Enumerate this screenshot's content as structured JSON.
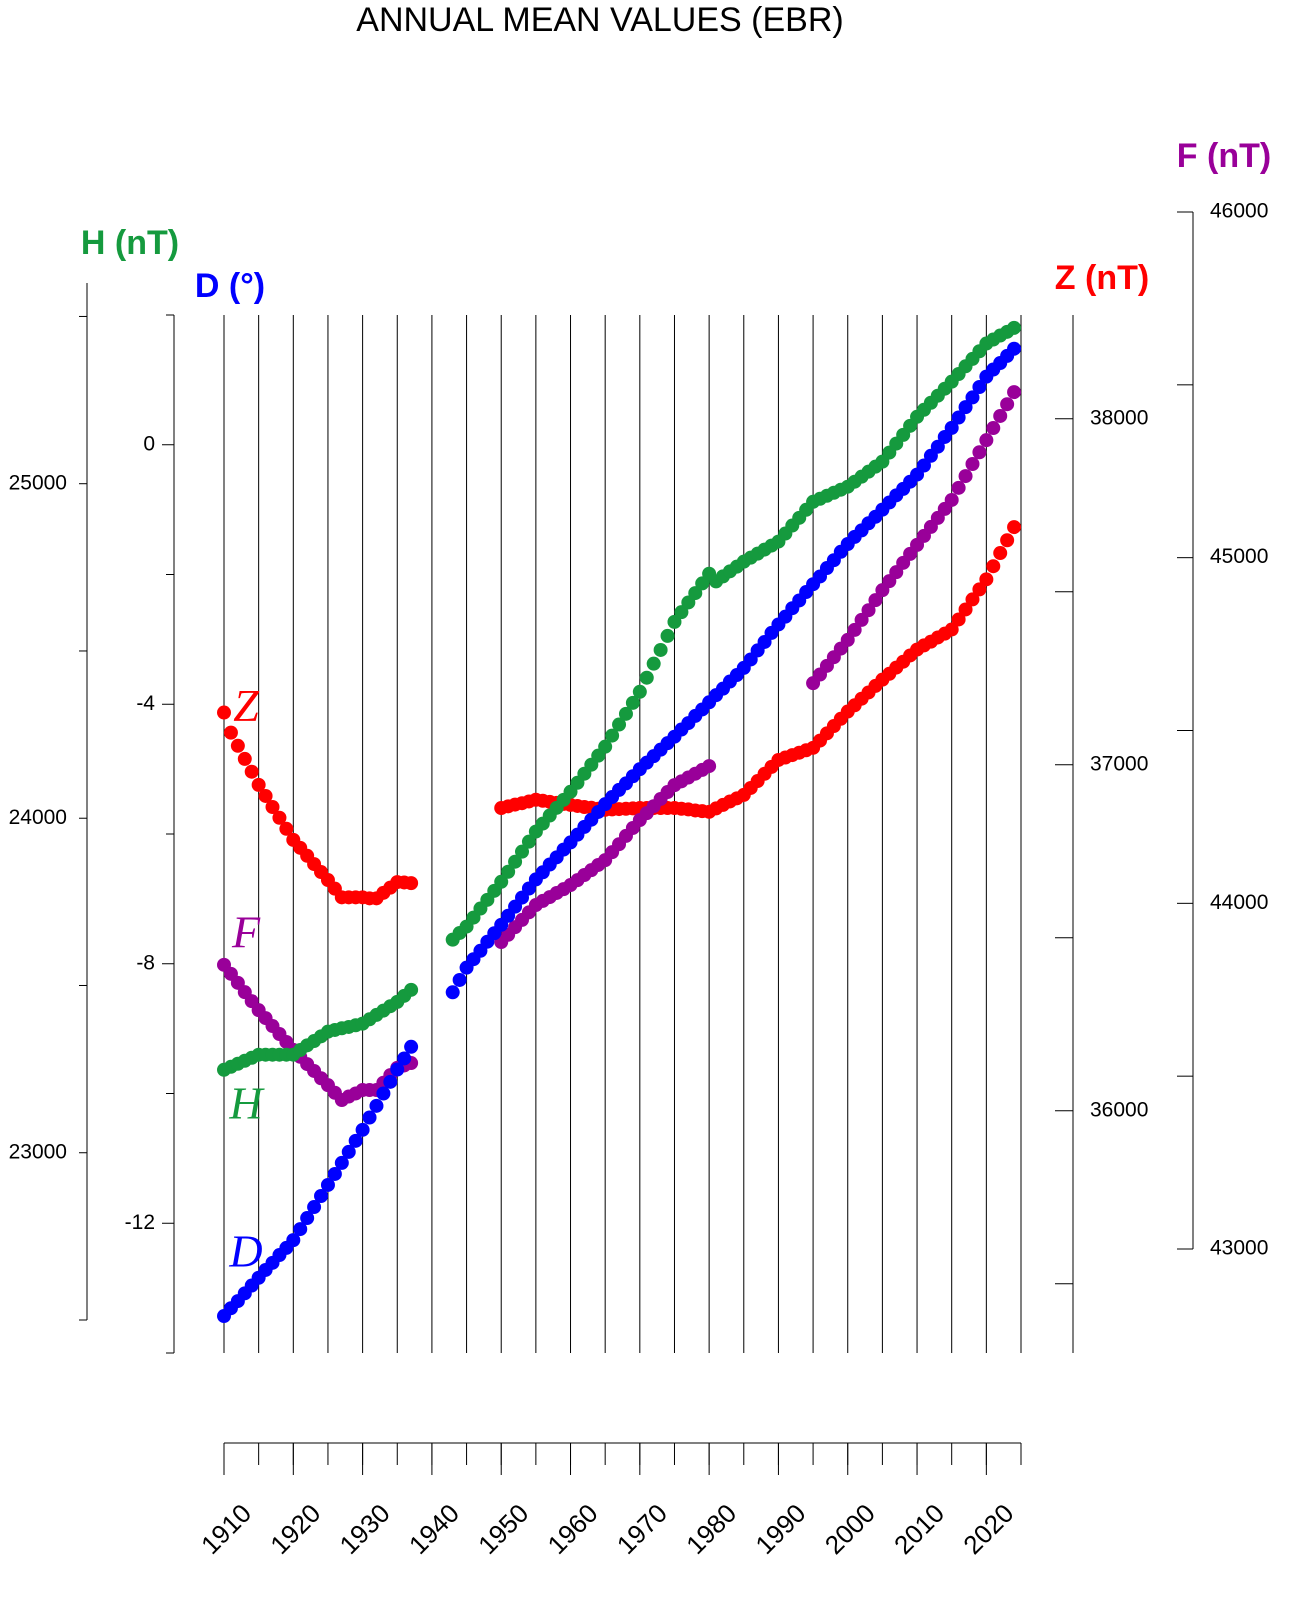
{
  "chart_data": {
    "type": "scatter",
    "title": "ANNUAL MEAN VALUES (EBR)",
    "x": [
      1910,
      1911,
      1912,
      1913,
      1914,
      1915,
      1916,
      1917,
      1918,
      1919,
      1920,
      1921,
      1922,
      1923,
      1924,
      1925,
      1926,
      1927,
      1928,
      1929,
      1930,
      1931,
      1932,
      1933,
      1934,
      1935,
      1936,
      1937,
      1938,
      1939,
      1940,
      1941,
      1942,
      1943,
      1944,
      1945,
      1946,
      1947,
      1948,
      1949,
      1950,
      1951,
      1952,
      1953,
      1954,
      1955,
      1956,
      1957,
      1958,
      1959,
      1960,
      1961,
      1962,
      1963,
      1964,
      1965,
      1966,
      1967,
      1968,
      1969,
      1970,
      1971,
      1972,
      1973,
      1974,
      1975,
      1976,
      1977,
      1978,
      1979,
      1980,
      1981,
      1982,
      1983,
      1984,
      1985,
      1986,
      1987,
      1988,
      1989,
      1990,
      1991,
      1992,
      1993,
      1994,
      1995,
      1996,
      1997,
      1998,
      1999,
      2000,
      2001,
      2002,
      2003,
      2004,
      2005,
      2006,
      2007,
      2008,
      2009,
      2010,
      2011,
      2012,
      2013,
      2014,
      2015,
      2016,
      2017,
      2018,
      2019,
      2020,
      2021,
      2022,
      2023,
      2024
    ],
    "xlim": [
      1910,
      2025
    ],
    "xticks": [
      1910,
      1920,
      1930,
      1940,
      1950,
      1960,
      1970,
      1980,
      1990,
      2000,
      2010,
      2020
    ],
    "xminorticks": [
      1910,
      1915,
      1920,
      1925,
      1930,
      1935,
      1940,
      1945,
      1950,
      1955,
      1960,
      1965,
      1970,
      1975,
      1980,
      1985,
      1990,
      1995,
      2000,
      2005,
      2010,
      2015,
      2020,
      2025
    ],
    "grid": true,
    "y_axes": [
      {
        "label": "D (°)",
        "color": "#0000ff",
        "lim": [
          -14,
          2
        ],
        "ticks": [
          -12,
          -8,
          -4,
          0
        ],
        "minor_ticks": [
          -14,
          -10,
          -6,
          -2,
          2
        ]
      },
      {
        "label": "H (nT)",
        "color": "#159a3e",
        "lim": [
          22500,
          25600
        ],
        "ticks": [
          23000,
          24000,
          25000
        ],
        "minor_ticks": [
          22500,
          23500,
          24500,
          25500
        ]
      },
      {
        "label": "Z (nT)",
        "color": "#ff0000",
        "lim": [
          35300,
          38300
        ],
        "ticks": [
          36000,
          37000,
          38000
        ],
        "minor_ticks": [
          35500,
          36500,
          37500
        ]
      },
      {
        "label": "F (nT)",
        "color": "#990099",
        "lim": [
          43000,
          46000
        ],
        "ticks": [
          43000,
          44000,
          45000,
          46000
        ],
        "minor_ticks": [
          43500,
          44500,
          45500
        ]
      }
    ],
    "series": [
      {
        "name": "Z",
        "color": "#ff0000",
        "axis": 2,
        "values": [
          37151,
          37093,
          37055,
          37017,
          36980,
          36942,
          36910,
          36878,
          36847,
          36815,
          36783,
          36760,
          36737,
          36713,
          36690,
          36667,
          36642,
          36617,
          36617,
          36617,
          36617,
          36614,
          36614,
          36630,
          36645,
          36661,
          36660,
          36658,
          null,
          null,
          null,
          null,
          null,
          null,
          null,
          null,
          null,
          null,
          null,
          null,
          36875,
          36880,
          36885,
          36889,
          36894,
          36899,
          36896,
          36893,
          36890,
          36887,
          36884,
          36881,
          36878,
          36876,
          36873,
          36870,
          36871,
          36872,
          36873,
          36874,
          36875,
          36875,
          36875,
          36875,
          36875,
          36875,
          36873,
          36871,
          36868,
          36866,
          36864,
          36874,
          36884,
          36894,
          36903,
          36913,
          36933,
          36953,
          36974,
          36994,
          37014,
          37021,
          37028,
          37035,
          37042,
          37049,
          37070,
          37091,
          37112,
          37133,
          37154,
          37172,
          37191,
          37209,
          37228,
          37246,
          37263,
          37281,
          37298,
          37316,
          37333,
          37345,
          37356,
          37368,
          37379,
          37391,
          37420,
          37449,
          37478,
          37507,
          37536,
          37574,
          37612,
          37649,
          37687
        ]
      },
      {
        "name": "F",
        "color": "#990099",
        "axis": 3,
        "values": [
          43822,
          43796,
          43770,
          43743,
          43717,
          43691,
          43668,
          43645,
          43622,
          43599,
          43576,
          43556,
          43535,
          43515,
          43494,
          43474,
          43452,
          43431,
          43441,
          43450,
          43460,
          43460,
          43460,
          43481,
          43503,
          43524,
          43531,
          43538,
          null,
          null,
          null,
          null,
          null,
          null,
          null,
          null,
          null,
          null,
          null,
          null,
          43888,
          43909,
          43931,
          43952,
          43974,
          43995,
          44007,
          44018,
          44030,
          44041,
          44053,
          44067,
          44082,
          44096,
          44111,
          44125,
          44148,
          44171,
          44195,
          44218,
          44241,
          44261,
          44281,
          44302,
          44322,
          44342,
          44353,
          44364,
          44375,
          44386,
          44397,
          null,
          null,
          null,
          null,
          null,
          null,
          null,
          null,
          null,
          null,
          null,
          null,
          null,
          null,
          44637,
          44662,
          44687,
          44712,
          44737,
          44762,
          44791,
          44820,
          44848,
          44877,
          44906,
          44932,
          44958,
          44985,
          45011,
          45037,
          45063,
          45089,
          45115,
          45141,
          45167,
          45202,
          45236,
          45271,
          45305,
          45340,
          45375,
          45410,
          45444,
          45479
        ]
      },
      {
        "name": "H",
        "color": "#159a3e",
        "axis": 1,
        "values": [
          23248,
          23257,
          23266,
          23275,
          23284,
          23293,
          23293,
          23293,
          23293,
          23293,
          23293,
          23307,
          23321,
          23334,
          23348,
          23362,
          23367,
          23372,
          23376,
          23381,
          23386,
          23399,
          23412,
          23425,
          23438,
          23451,
          23469,
          23487,
          null,
          null,
          null,
          null,
          null,
          23637,
          23657,
          23676,
          23703,
          23730,
          23756,
          23783,
          23810,
          23840,
          23870,
          23900,
          23930,
          23960,
          23984,
          24008,
          24031,
          24055,
          24079,
          24106,
          24133,
          24160,
          24187,
          24214,
          24247,
          24280,
          24312,
          24345,
          24378,
          24420,
          24462,
          24503,
          24545,
          24587,
          24616,
          24645,
          24673,
          24702,
          24731,
          24708,
          24723,
          24738,
          24752,
          24767,
          24779,
          24791,
          24803,
          24815,
          24827,
          24851,
          24875,
          24898,
          24922,
          24946,
          24955,
          24964,
          24973,
          24982,
          24991,
          25006,
          25021,
          25036,
          25051,
          25066,
          25093,
          25120,
          25146,
          25173,
          25200,
          25221,
          25242,
          25263,
          25284,
          25305,
          25328,
          25351,
          25373,
          25396,
          25419,
          25431,
          25443,
          25454,
          25466
        ]
      },
      {
        "name": "D",
        "color": "#0000ff",
        "axis": 0,
        "values": [
          -13.43,
          -13.31,
          -13.2,
          -13.08,
          -12.96,
          -12.84,
          -12.72,
          -12.61,
          -12.49,
          -12.38,
          -12.26,
          -12.09,
          -11.92,
          -11.75,
          -11.58,
          -11.41,
          -11.24,
          -11.07,
          -10.9,
          -10.73,
          -10.56,
          -10.37,
          -10.19,
          -10.0,
          -9.82,
          -9.63,
          -9.46,
          -9.28,
          null,
          null,
          null,
          null,
          null,
          -8.44,
          -8.25,
          -8.06,
          -7.93,
          -7.8,
          -7.66,
          -7.53,
          -7.4,
          -7.26,
          -7.12,
          -6.98,
          -6.84,
          -6.7,
          -6.59,
          -6.47,
          -6.36,
          -6.24,
          -6.13,
          -6.01,
          -5.89,
          -5.78,
          -5.66,
          -5.54,
          -5.43,
          -5.32,
          -5.22,
          -5.11,
          -5.0,
          -4.9,
          -4.8,
          -4.7,
          -4.6,
          -4.5,
          -4.39,
          -4.29,
          -4.18,
          -4.08,
          -3.97,
          -3.86,
          -3.76,
          -3.65,
          -3.55,
          -3.44,
          -3.31,
          -3.17,
          -3.04,
          -2.9,
          -2.77,
          -2.65,
          -2.52,
          -2.4,
          -2.27,
          -2.15,
          -2.03,
          -1.9,
          -1.78,
          -1.65,
          -1.53,
          -1.42,
          -1.32,
          -1.21,
          -1.11,
          -1.0,
          -0.89,
          -0.78,
          -0.68,
          -0.57,
          -0.46,
          -0.32,
          -0.17,
          -0.03,
          0.12,
          0.26,
          0.42,
          0.58,
          0.73,
          0.89,
          1.05,
          1.16,
          1.26,
          1.37,
          1.48
        ]
      }
    ]
  }
}
